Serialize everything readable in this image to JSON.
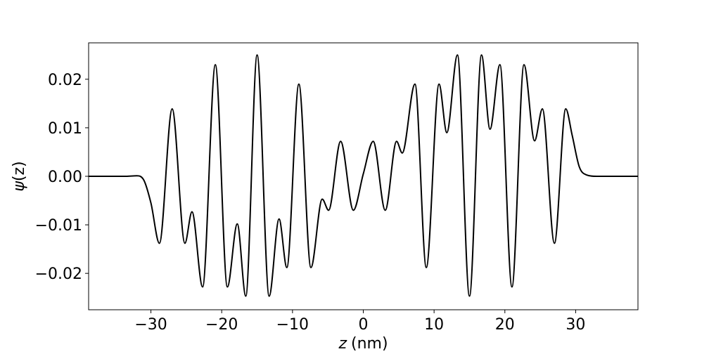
{
  "chart_data": {
    "type": "line",
    "xlabel_var": "z",
    "xlabel_unit": "(nm)",
    "ylabel_var": "ψ",
    "ylabel_arg": "(z)",
    "xlim": [
      -38.8,
      38.8
    ],
    "ylim": [
      -0.0275,
      0.0275
    ],
    "grid": false,
    "xticks": [
      -30,
      -20,
      -10,
      0,
      10,
      20,
      30
    ],
    "xtick_labels": [
      "−30",
      "−20",
      "−10",
      "0",
      "10",
      "20",
      "30"
    ],
    "yticks": [
      -0.02,
      -0.01,
      0.0,
      0.01,
      0.02
    ],
    "ytick_labels": [
      "−0.02",
      "−0.01",
      "0.00",
      "0.01",
      "0.02"
    ],
    "series": [
      {
        "color": "#000000",
        "points": [
          [
            -38.8,
            0.0
          ],
          [
            -33.5,
            0.0
          ],
          [
            -32.0,
            0.0001
          ],
          [
            -31.0,
            -0.0008
          ],
          [
            -30.0,
            -0.0055
          ],
          [
            -28.8,
            -0.0138
          ],
          [
            -27.0,
            0.0139
          ],
          [
            -25.2,
            -0.0138
          ],
          [
            -24.2,
            -0.0073
          ],
          [
            -22.7,
            -0.0228
          ],
          [
            -20.9,
            0.023
          ],
          [
            -19.2,
            -0.0228
          ],
          [
            -17.8,
            -0.0098
          ],
          [
            -16.6,
            -0.0247
          ],
          [
            -15.0,
            0.025
          ],
          [
            -13.3,
            -0.0247
          ],
          [
            -11.9,
            -0.0088
          ],
          [
            -10.8,
            -0.0188
          ],
          [
            -9.1,
            0.019
          ],
          [
            -7.4,
            -0.0188
          ],
          [
            -5.8,
            -0.0047
          ],
          [
            -4.9,
            -0.007
          ],
          [
            -3.2,
            0.0072
          ],
          [
            -1.4,
            -0.007
          ],
          [
            0.0,
            0.0005
          ],
          [
            1.4,
            0.0072
          ],
          [
            3.1,
            -0.007
          ],
          [
            4.7,
            0.0072
          ],
          [
            5.5,
            0.0048
          ],
          [
            7.3,
            0.019
          ],
          [
            8.9,
            -0.0188
          ],
          [
            10.7,
            0.019
          ],
          [
            11.8,
            0.009
          ],
          [
            13.3,
            0.025
          ],
          [
            15.0,
            -0.0247
          ],
          [
            16.7,
            0.025
          ],
          [
            17.9,
            0.0097
          ],
          [
            19.3,
            0.023
          ],
          [
            21.0,
            -0.0228
          ],
          [
            22.7,
            0.023
          ],
          [
            24.2,
            0.0073
          ],
          [
            25.3,
            0.0139
          ],
          [
            27.0,
            -0.0138
          ],
          [
            28.6,
            0.0139
          ],
          [
            29.5,
            0.0085
          ],
          [
            30.5,
            0.002
          ],
          [
            31.5,
            0.0003
          ],
          [
            33.0,
            0.0
          ],
          [
            38.8,
            0.0
          ]
        ]
      }
    ]
  }
}
